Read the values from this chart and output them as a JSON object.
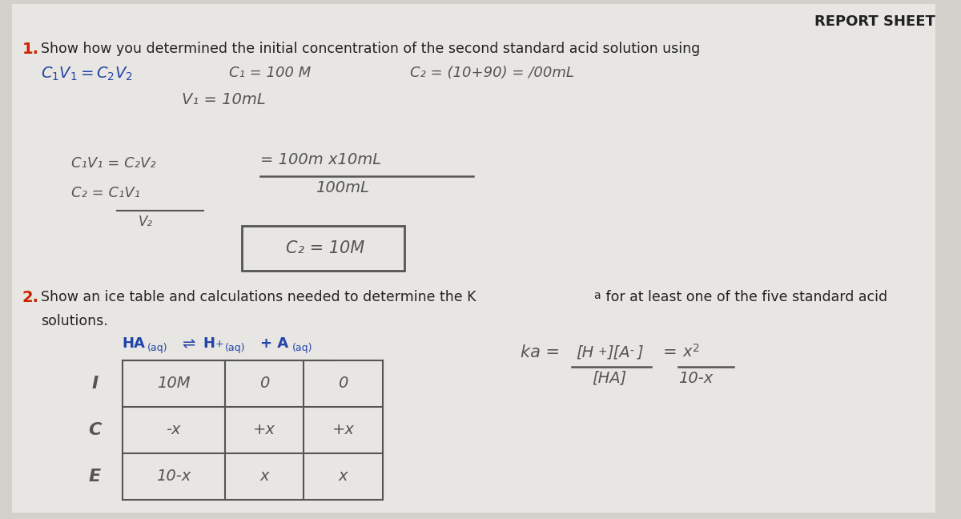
{
  "bg_color": "#d4d0cc",
  "paper_color": "#e8e6e2",
  "title_color": "#1a1a1a",
  "red_color": "#cc2200",
  "blue_color": "#2244aa",
  "pencil_color": "#555555",
  "dark_color": "#222222",
  "header_text": "REPORT SHEET",
  "q1_label": "1.",
  "q1_text": "Show how you determined the initial concentration of the second standard acid solution using",
  "q1_formula_printed": "C₁V₁ = C₂V₂",
  "q1_c1_hand": "C₁ = 100 M",
  "q1_c2_hand": "C₂ = (10+90) = /00mL",
  "q1_v1_hand": "V₁ = 10mL",
  "q1_eq_hand": "C₁V₁ = C₂V₂",
  "q1_rhs_hand": "= 100m x10mL",
  "q1_denom_hand": "100mL",
  "q1_c2frac_hand": "C₂ = C₁V₁",
  "q1_v2_hand": "V₂",
  "q1_boxed_hand": "C₂ = 10M",
  "q2_label": "2.",
  "q2_text1": "Show an ice table and calculations needed to determine the K",
  "q2_Ka_sub": "a",
  "q2_text2": " for at least one of the five standard acid",
  "q2_solutions": "solutions.",
  "ice_I": "I",
  "ice_C": "C",
  "ice_E": "E",
  "ice_I_HA": "10M",
  "ice_I_H": "0",
  "ice_I_A": "0",
  "ice_C_HA": "-x",
  "ice_C_H": "+x",
  "ice_C_A": "+x",
  "ice_E_HA": "10-x",
  "ice_E_H": "x",
  "ice_E_A": "x"
}
